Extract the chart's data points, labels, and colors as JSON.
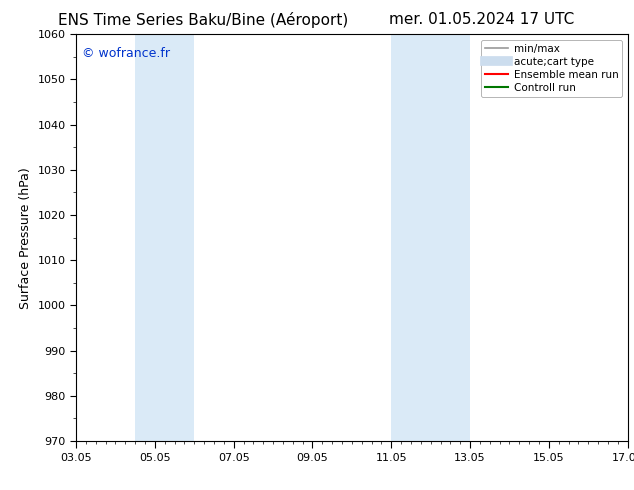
{
  "title_left": "ENS Time Series Baku/Bine (Aéroport)",
  "title_right": "mer. 01.05.2024 17 UTC",
  "ylabel": "Surface Pressure (hPa)",
  "ylim": [
    970,
    1060
  ],
  "yticks": [
    970,
    980,
    990,
    1000,
    1010,
    1020,
    1030,
    1040,
    1050,
    1060
  ],
  "x_start_days": 0,
  "x_end_days": 14,
  "xtick_labels": [
    "03.05",
    "05.05",
    "07.05",
    "09.05",
    "11.05",
    "13.05",
    "15.05",
    "17.05"
  ],
  "xtick_positions_days": [
    0,
    2,
    4,
    6,
    8,
    10,
    12,
    14
  ],
  "shaded_bands": [
    {
      "x_start_days": 1.5,
      "x_end_days": 3.0
    },
    {
      "x_start_days": 8.0,
      "x_end_days": 10.0
    }
  ],
  "shaded_color": "#daeaf7",
  "watermark_text": "© wofrance.fr",
  "watermark_color": "#0033cc",
  "legend_items": [
    {
      "label": "min/max",
      "color": "#999999",
      "lw": 1.2
    },
    {
      "label": "acute;cart type",
      "color": "#ccddee",
      "lw": 7
    },
    {
      "label": "Ensemble mean run",
      "color": "#ff0000",
      "lw": 1.5
    },
    {
      "label": "Controll run",
      "color": "#007700",
      "lw": 1.5
    }
  ],
  "bg_color": "#ffffff",
  "title_fontsize": 11,
  "axis_label_fontsize": 9,
  "tick_fontsize": 8,
  "watermark_fontsize": 9,
  "legend_fontsize": 7.5
}
